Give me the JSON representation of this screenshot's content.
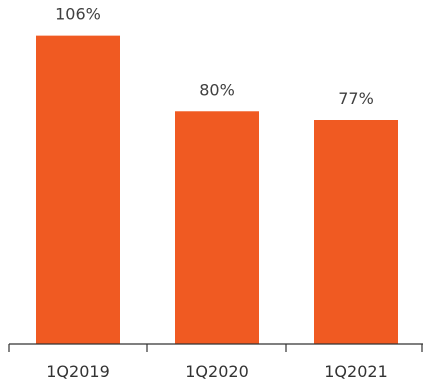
{
  "chart_data": {
    "type": "bar",
    "categories": [
      "1Q2019",
      "1Q2020",
      "1Q2021"
    ],
    "values": [
      106,
      80,
      77
    ],
    "value_labels": [
      "106%",
      "80%",
      "77%"
    ],
    "ylim": [
      0,
      110
    ],
    "grid": false,
    "legend": "none",
    "bar_color": "#F05A22",
    "axis_color": "#333333"
  }
}
